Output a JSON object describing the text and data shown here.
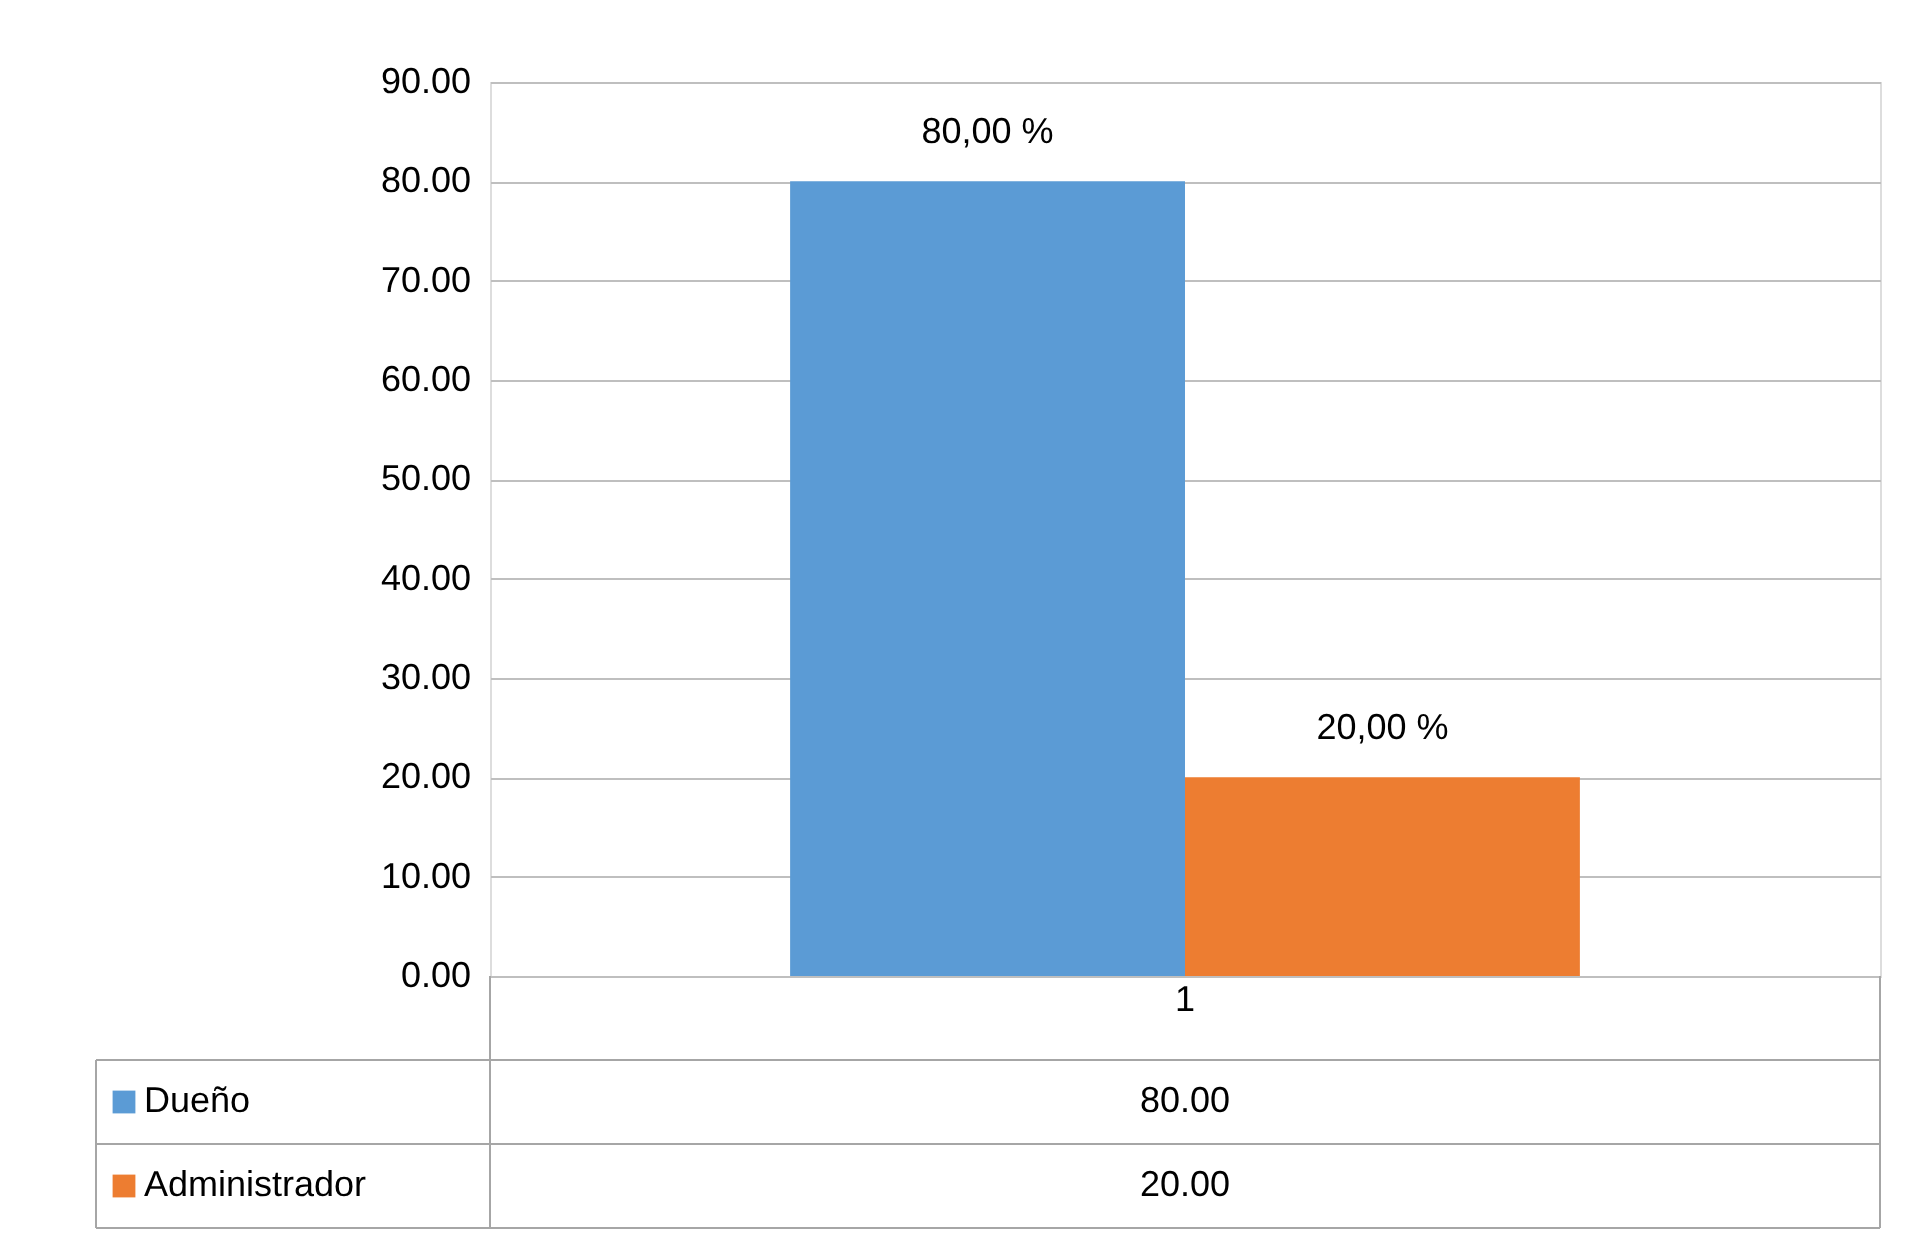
{
  "chart_data": {
    "type": "bar",
    "categories": [
      "1"
    ],
    "series": [
      {
        "name": "Dueño",
        "color": "#5b9bd5",
        "values": [
          80.0
        ],
        "value_labels": [
          "80,00 %"
        ]
      },
      {
        "name": "Administrador",
        "color": "#ed7d31",
        "values": [
          20.0
        ],
        "value_labels": [
          "20,00 %"
        ]
      }
    ],
    "ylim": [
      0,
      90
    ],
    "yticks": [
      {
        "value": 0,
        "label": "0.00"
      },
      {
        "value": 10,
        "label": "10.00"
      },
      {
        "value": 20,
        "label": "20.00"
      },
      {
        "value": 30,
        "label": "30.00"
      },
      {
        "value": 40,
        "label": "40.00"
      },
      {
        "value": 50,
        "label": "50.00"
      },
      {
        "value": 60,
        "label": "60.00"
      },
      {
        "value": 70,
        "label": "70.00"
      },
      {
        "value": 80,
        "label": "80.00"
      },
      {
        "value": 90,
        "label": "90.00"
      }
    ],
    "grid": "y",
    "data_labels": true,
    "legend": "bottom",
    "annotations": [
      "80.00",
      "20.00"
    ]
  }
}
